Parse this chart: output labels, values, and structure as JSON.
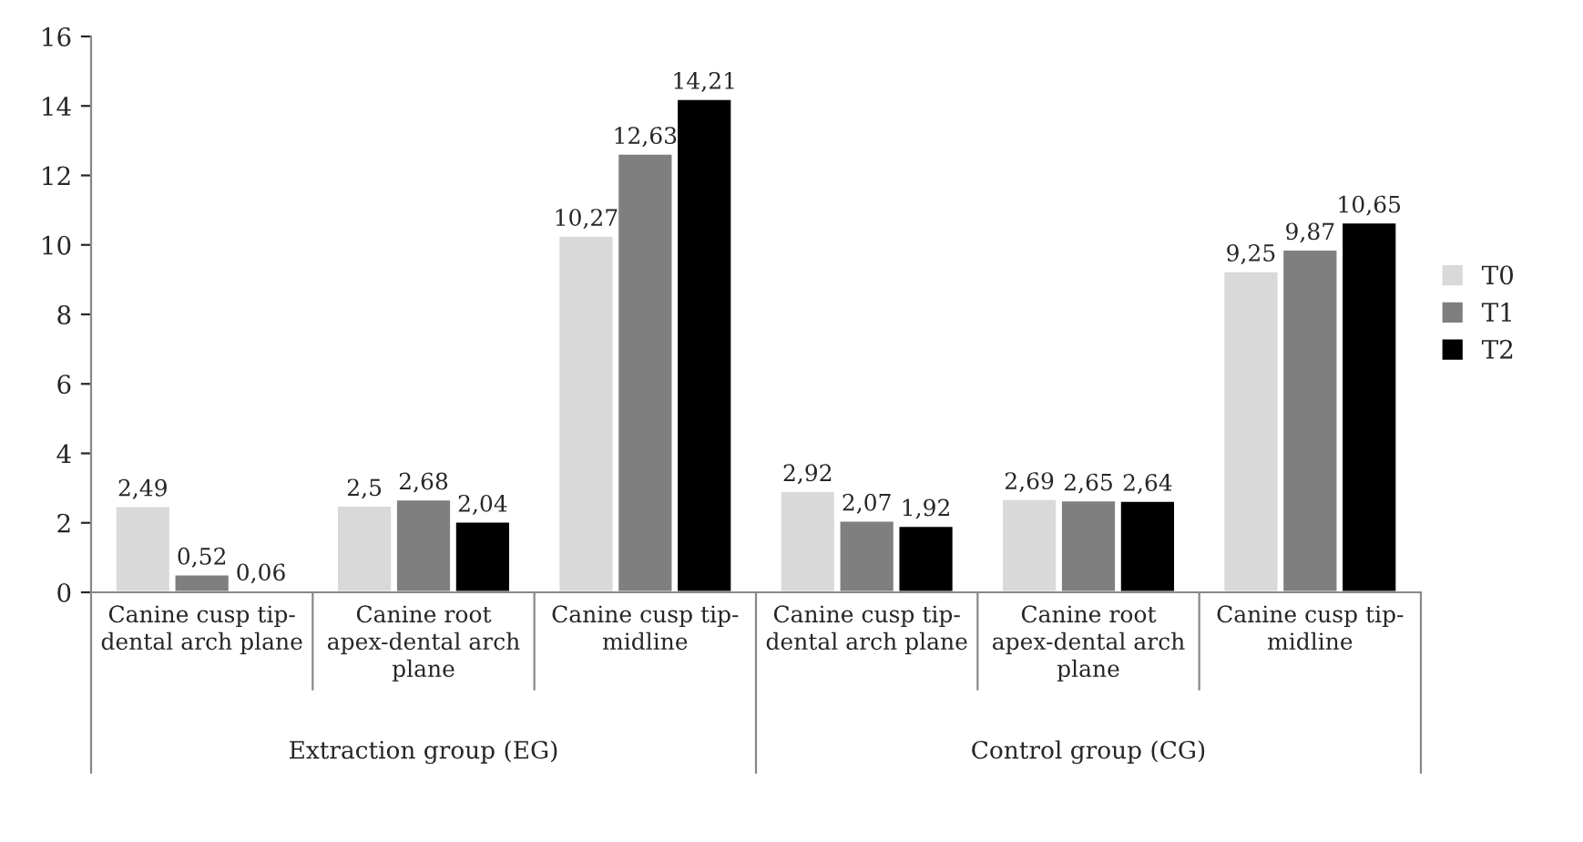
{
  "chart_data": {
    "type": "bar",
    "categories": [
      "Canine cusp tip-\ndental arch plane",
      "Canine root\napex-dental arch\nplane",
      "Canine cusp tip-\nmidline",
      "Canine cusp tip-\ndental arch plane",
      "Canine root\napex-dental arch\nplane",
      "Canine cusp tip-\nmidline"
    ],
    "series": [
      {
        "name": "T0",
        "color": "#d9d9d9",
        "values": [
          2.49,
          2.5,
          10.27,
          2.92,
          2.69,
          9.25
        ],
        "value_labels": [
          "2,49",
          "2,5",
          "10,27",
          "2,92",
          "2,69",
          "9,25"
        ]
      },
      {
        "name": "T1",
        "color": "#7f7f7f",
        "values": [
          0.52,
          2.68,
          12.63,
          2.07,
          2.65,
          9.87
        ],
        "value_labels": [
          "0,52",
          "2,68",
          "12,63",
          "2,07",
          "2,65",
          "9,87"
        ]
      },
      {
        "name": "T2",
        "color": "#000000",
        "values": [
          0.06,
          2.04,
          14.21,
          1.92,
          2.64,
          10.65
        ],
        "value_labels": [
          "0,06",
          "2,04",
          "14,21",
          "1,92",
          "2,64",
          "10,65"
        ]
      }
    ],
    "annotations": [
      "Extraction group (EG)",
      "Control group (CG)"
    ],
    "ylim": [
      0,
      16
    ],
    "yticks": [
      0,
      2,
      4,
      6,
      8,
      10,
      12,
      14,
      16
    ],
    "grid": false,
    "legend": "right"
  }
}
